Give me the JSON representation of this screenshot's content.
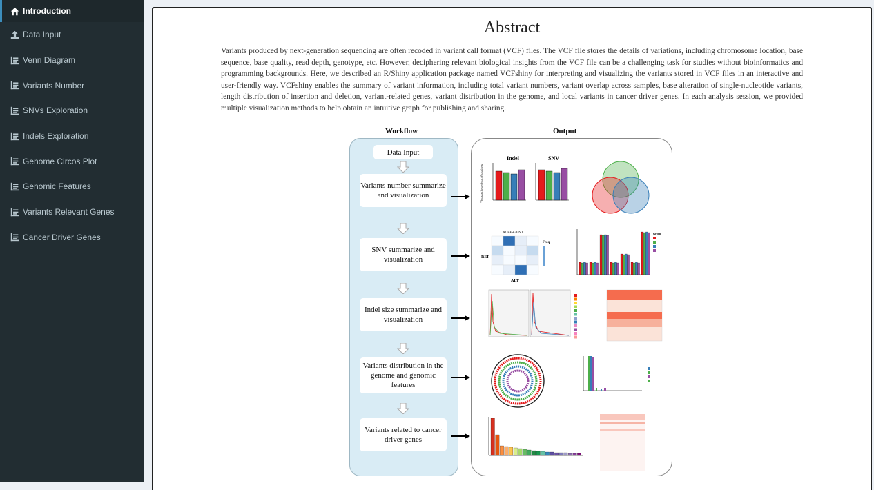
{
  "sidebar": {
    "items": [
      {
        "label": "Introduction",
        "icon": "home-icon",
        "active": true
      },
      {
        "label": "Data Input",
        "icon": "upload-icon"
      },
      {
        "label": "Venn Diagram",
        "icon": "list-icon"
      },
      {
        "label": "Variants Number",
        "icon": "list-icon"
      },
      {
        "label": "SNVs Exploration",
        "icon": "list-icon"
      },
      {
        "label": "Indels Exploration",
        "icon": "list-icon"
      },
      {
        "label": "Genome Circos Plot",
        "icon": "list-icon"
      },
      {
        "label": "Genomic Features",
        "icon": "list-icon"
      },
      {
        "label": "Variants Relevant Genes",
        "icon": "list-icon"
      },
      {
        "label": "Cancer Driver Genes",
        "icon": "list-icon"
      }
    ]
  },
  "main": {
    "title": "Abstract",
    "abstract": "Variants produced by next-generation sequencing are often recoded in variant call format (VCF) files. The VCF file stores the details of variations, including chromosome location, base sequence, base quality, read depth, genotype, etc. However, deciphering relevant biological insights from the VCF file can be a challenging task for studies without bioinformatics and programming backgrounds. Here, we described an R/Shiny application package named VCFshiny for interpreting and visualizing the variants stored in VCF files in an interactive and user-friendly way. VCFshiny enables the summary of variant information, including total variant numbers, variant overlap across samples, base alteration of single-nucleotide variants, length distribution of insertion and deletion, variant-related genes, variant distribution in the genome, and local variants in cancer driver genes. In each analysis session, we provided multiple visualization methods to help obtain an intuitive graph for publishing and sharing."
  },
  "figure": {
    "workflow_title": "Workflow",
    "output_title": "Output",
    "steps": [
      "Data Input",
      "Variants number summarize and visualization",
      "SNV summarize and visualization",
      "Indel size summarize and visualization",
      "Variants distribution in the genome and genomic features",
      "Variants related to cancer driver genes"
    ],
    "thumb_labels": {
      "indel": "Indel",
      "snv": "SNV",
      "ylabel_total": "The total number of variants",
      "heatmap_title": "AGBE-GT-NT",
      "heatmap_ylabel": "REF",
      "heatmap_xlabel": "ALT",
      "heatmap_legend": "Freq",
      "group_legend": "Group"
    },
    "colors": {
      "red": "#e41a1c",
      "green": "#4daf4a",
      "blue": "#377eb8",
      "purple": "#984ea3"
    }
  }
}
